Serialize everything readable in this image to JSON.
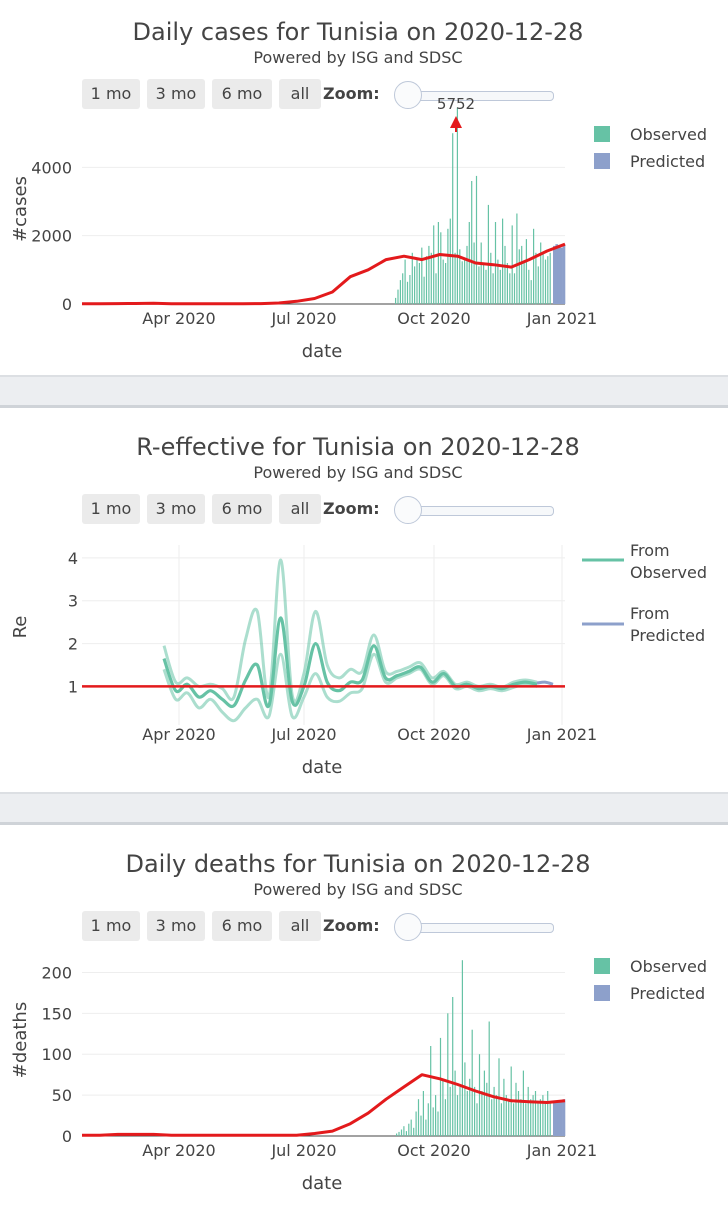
{
  "colors": {
    "observed": "#66c2a5",
    "predicted": "#8da0cb",
    "trend": "#e31a1c",
    "grid": "#eeeeee"
  },
  "buttons": [
    "1 mo",
    "3 mo",
    "6 mo",
    "all"
  ],
  "zoom_label": "Zoom:",
  "panels": [
    {
      "title": "Daily cases for Tunisia on 2020-12-28",
      "subtitle": "Powered by ISG and SDSC",
      "chart_data": {
        "type": "bar",
        "xlabel": "date",
        "ylabel": "#cases",
        "x_range": [
          "2020-03-01",
          "2021-01-01"
        ],
        "x_ticks": [
          "Apr 2020",
          "Jul 2020",
          "Oct 2020",
          "Jan 2021"
        ],
        "ylim": [
          0,
          4800
        ],
        "y_ticks": [
          "0",
          "2000",
          "4000"
        ],
        "legend": [
          "Observed",
          "Predicted"
        ],
        "annotation": "5752",
        "peak": {
          "label": "5752",
          "value": 5752
        },
        "series": [
          {
            "name": "Observed",
            "values": [
              180,
              420,
              700,
              900,
              1300,
              650,
              850,
              1500,
              1100,
              1300,
              1200,
              1650,
              800,
              1400,
              1700,
              1500,
              2300,
              900,
              2400,
              2100,
              1300,
              1200,
              2200,
              2500,
              5000,
              1500,
              5752,
              1600,
              1250,
              1350,
              1700,
              2400,
              3600,
              1800,
              3750,
              1100,
              1800,
              1200,
              1000,
              2900,
              1500,
              900,
              2400,
              1300,
              1000,
              2500,
              1700,
              1200,
              900,
              2300,
              900,
              2650,
              1600,
              1700,
              1200,
              1900,
              1000,
              700,
              2200,
              1500,
              1100,
              1800,
              1500,
              1300,
              1400,
              1500
            ]
          },
          {
            "name": "Predicted",
            "values": [
              1700,
              1750,
              1700,
              1650,
              1750
            ]
          },
          {
            "name": "Trend",
            "values": [
              5,
              8,
              12,
              15,
              20,
              10,
              5,
              5,
              5,
              8,
              12,
              30,
              80,
              160,
              350,
              800,
              1000,
              1300,
              1400,
              1300,
              1450,
              1400,
              1200,
              1150,
              1080,
              1300,
              1550,
              1750
            ]
          }
        ]
      }
    },
    {
      "title": "R-effective for Tunisia on 2020-12-28",
      "subtitle": "Powered by ISG and SDSC",
      "chart_data": {
        "type": "line",
        "xlabel": "date",
        "ylabel": "Re",
        "x_range": [
          "2020-03-01",
          "2021-01-01"
        ],
        "x_ticks": [
          "Apr 2020",
          "Jul 2020",
          "Oct 2020",
          "Jan 2021"
        ],
        "ylim": [
          0.1,
          4.3
        ],
        "y_ticks": [
          "1",
          "2",
          "3",
          "4"
        ],
        "legend": [
          "From Observed",
          "From Predicted"
        ],
        "series": [
          {
            "name": "Re observed",
            "values": [
              1.65,
              0.9,
              1.05,
              0.75,
              0.9,
              0.7,
              0.55,
              1.15,
              1.5,
              0.55,
              2.6,
              0.65,
              1.0,
              2.0,
              1.1,
              0.9,
              1.1,
              1.15,
              1.95,
              1.2,
              1.25,
              1.35,
              1.45,
              1.1,
              1.3,
              1.0,
              1.05,
              0.95,
              1.0,
              0.95,
              1.05,
              1.1,
              1.05
            ]
          },
          {
            "name": "Re observed upper",
            "values": [
              1.95,
              1.1,
              1.2,
              1.0,
              1.05,
              0.95,
              0.75,
              2.1,
              2.75,
              0.75,
              3.95,
              0.8,
              1.3,
              2.75,
              1.5,
              1.2,
              1.4,
              1.35,
              2.2,
              1.35,
              1.35,
              1.45,
              1.55,
              1.2,
              1.35,
              1.05,
              1.1,
              1.0,
              1.05,
              0.98,
              1.1,
              1.15,
              1.1
            ]
          },
          {
            "name": "Re observed lower",
            "values": [
              1.4,
              0.7,
              0.85,
              0.5,
              0.7,
              0.4,
              0.2,
              0.5,
              0.7,
              0.3,
              1.75,
              0.3,
              0.75,
              1.3,
              0.75,
              0.65,
              0.85,
              0.95,
              1.75,
              1.1,
              1.2,
              1.3,
              1.4,
              1.05,
              1.25,
              0.95,
              1.0,
              0.9,
              0.95,
              0.9,
              0.98,
              1.05,
              1.0
            ]
          },
          {
            "name": "Re predicted",
            "values": [
              1.08,
              1.1,
              1.05
            ]
          },
          {
            "name": "Threshold",
            "values": [
              1,
              1
            ]
          }
        ]
      }
    },
    {
      "title": "Daily deaths for Tunisia on 2020-12-28",
      "subtitle": "Powered by ISG and SDSC",
      "chart_data": {
        "type": "bar",
        "xlabel": "date",
        "ylabel": "#deaths",
        "x_range": [
          "2020-03-01",
          "2021-01-01"
        ],
        "x_ticks": [
          "Apr 2020",
          "Jul 2020",
          "Oct 2020",
          "Jan 2021"
        ],
        "ylim": [
          0,
          225
        ],
        "y_ticks": [
          "0",
          "50",
          "100",
          "150",
          "200"
        ],
        "legend": [
          "Observed",
          "Predicted"
        ],
        "series": [
          {
            "name": "Observed",
            "values": [
              3,
              5,
              8,
              12,
              6,
              15,
              20,
              10,
              30,
              45,
              25,
              55,
              20,
              40,
              110,
              35,
              50,
              30,
              120,
              70,
              45,
              150,
              60,
              170,
              80,
              50,
              60,
              215,
              90,
              55,
              70,
              130,
              60,
              40,
              100,
              55,
              80,
              65,
              140,
              45,
              60,
              50,
              95,
              40,
              70,
              50,
              45,
              85,
              40,
              65,
              55,
              45,
              80,
              40,
              60,
              45,
              50,
              55,
              40,
              45,
              50,
              40,
              55,
              40
            ]
          },
          {
            "name": "Predicted",
            "values": [
              42,
              43,
              44,
              41,
              45
            ]
          },
          {
            "name": "Trend",
            "values": [
              1,
              1,
              2,
              2,
              2,
              1,
              1,
              1,
              1,
              1,
              1,
              1,
              1,
              3,
              6,
              15,
              28,
              45,
              60,
              75,
              70,
              63,
              55,
              48,
              43,
              42,
              41,
              43
            ]
          }
        ]
      }
    }
  ]
}
